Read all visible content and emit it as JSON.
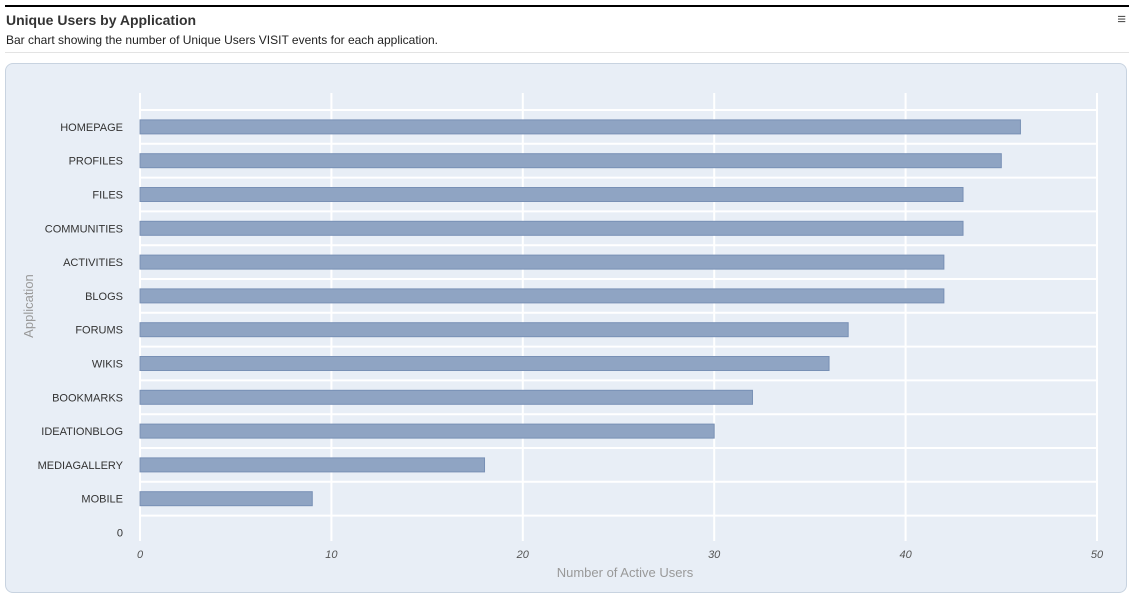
{
  "header": {
    "title": "Unique Users by Application",
    "subtitle": "Bar chart showing the number of Unique Users VISIT events for each application.",
    "menu_icon": "hamburger-menu-icon"
  },
  "chart_data": {
    "type": "bar",
    "orientation": "horizontal",
    "categories": [
      "HOMEPAGE",
      "PROFILES",
      "FILES",
      "COMMUNITIES",
      "ACTIVITIES",
      "BLOGS",
      "FORUMS",
      "WIKIS",
      "BOOKMARKS",
      "IDEATIONBLOG",
      "MEDIAGALLERY",
      "MOBILE",
      "0"
    ],
    "values": [
      46,
      45,
      43,
      43,
      42,
      42,
      37,
      36,
      32,
      30,
      18,
      9,
      0
    ],
    "xlabel": "Number of Active Users",
    "ylabel": "Application",
    "xlim": [
      0,
      50
    ],
    "x_ticks": [
      0,
      10,
      20,
      30,
      40,
      50
    ],
    "grid": true,
    "bar_color": "#8fa4c3",
    "bar_edge_color": "#7890b5",
    "plot_background": "#e8eef6"
  }
}
